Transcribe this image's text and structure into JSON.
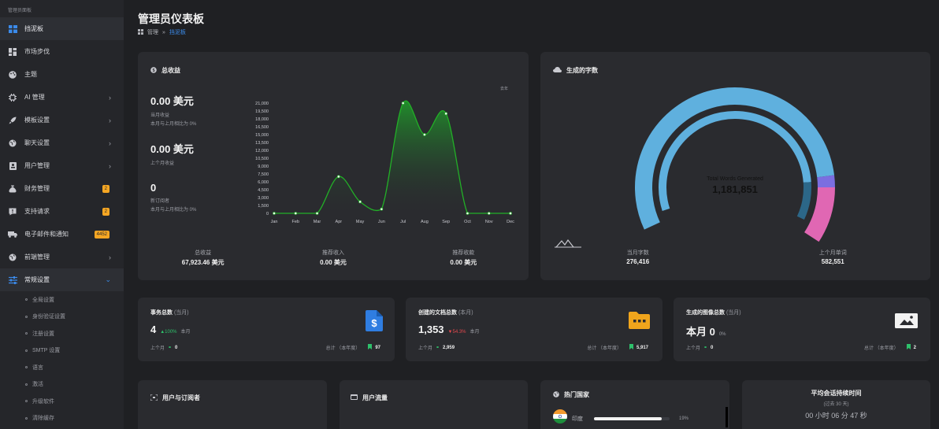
{
  "sidebar": {
    "title": "管理员面板",
    "items": [
      {
        "label": "挡泥板",
        "icon": "dashboard-icon",
        "active": true
      },
      {
        "label": "市场步伐",
        "icon": "marketplace-icon"
      },
      {
        "label": "主题",
        "icon": "palette-icon"
      },
      {
        "label": "AI 管理",
        "icon": "chip-icon",
        "chevron": "›"
      },
      {
        "label": "模板设置",
        "icon": "rocket-icon",
        "chevron": "›"
      },
      {
        "label": "聊天设置",
        "icon": "globe-icon",
        "chevron": "›"
      },
      {
        "label": "用户管理",
        "icon": "user-card-icon",
        "chevron": "›"
      },
      {
        "label": "财务管理",
        "icon": "money-bag-icon",
        "badge": "2"
      },
      {
        "label": "支持请求",
        "icon": "support-icon",
        "badge": "2"
      },
      {
        "label": "电子邮件和通知",
        "icon": "mail-truck-icon",
        "badge": "4452"
      },
      {
        "label": "前端管理",
        "icon": "globe-icon",
        "chevron": "›"
      },
      {
        "label": "常规设置",
        "icon": "sliders-icon",
        "chevron": "⌄",
        "active": true
      }
    ],
    "sub_items": [
      "全局设置",
      "身份验证设置",
      "注册设置",
      "SMTP 设置",
      "语言",
      "激活",
      "升级软件",
      "清除缓存"
    ]
  },
  "header": {
    "title": "管理员仪表板",
    "breadcrumb_root": "管理",
    "breadcrumb_sep": "»",
    "breadcrumb_current": "挡泥板"
  },
  "revenue": {
    "title": "总收益",
    "current_amount": "0.00 美元",
    "current_label": "当月收益",
    "current_compare": "本月与上月相比为 0%",
    "prev_amount": "0.00 美元",
    "prev_label": "上个月收益",
    "orders_count": "0",
    "orders_label": "新订阅者",
    "orders_compare": "本月与上月相比为 0%",
    "legend_tag": "去年",
    "footer": [
      {
        "label": "总收益",
        "value": "67,923.46 美元"
      },
      {
        "label": "推荐收入",
        "value": "0.00 美元"
      },
      {
        "label": "推荐收款",
        "value": "0.00 美元"
      }
    ]
  },
  "chart_data": {
    "type": "line",
    "categories": [
      "Jan",
      "Feb",
      "Mar",
      "Apr",
      "May",
      "Jun",
      "Jul",
      "Aug",
      "Sep",
      "Oct",
      "Nov",
      "Dec"
    ],
    "values": [
      0,
      0,
      0,
      7000,
      2200,
      800,
      21000,
      15000,
      19000,
      0,
      0,
      0
    ],
    "ylim": [
      0,
      21000
    ],
    "yticks": [
      "0",
      "1,500",
      "3,000",
      "4,500",
      "6,000",
      "7,500",
      "9,000",
      "10,500",
      "12,000",
      "13,500",
      "15,000",
      "16,500",
      "18,000",
      "19,500",
      "21,000"
    ],
    "color": "#22b027"
  },
  "words": {
    "title": "生成的字数",
    "center_label": "Total Words Generated",
    "center_value": "1,181,851",
    "stats": [
      {
        "label": "当月字数",
        "value": "276,416"
      },
      {
        "label": "上个月单词",
        "value": "582,551"
      }
    ]
  },
  "tasks": {
    "title": "事务总数",
    "title_suffix": "(当月)",
    "value": "4",
    "change": "▲100%",
    "change_suffix": "本月",
    "prev_label": "上个月",
    "prev_value": "0",
    "total_label": "总计 （本年度）",
    "total_value": "97"
  },
  "docs": {
    "title": "创建的文档总数",
    "title_suffix": "(本月)",
    "value": "1,353",
    "change": "▼54.3%",
    "change_suffix": "本月",
    "prev_label": "上个月",
    "prev_value": "2,959",
    "total_label": "总计 （本年度）",
    "total_value": "5,917"
  },
  "images": {
    "title": "生成的图像总数",
    "title_suffix": "(当月)",
    "value": "本月 0",
    "change": "0%",
    "prev_label": "上个月",
    "prev_value": "0",
    "total_label": "总计 （本年度）",
    "total_value": "2"
  },
  "bottom": {
    "users_title": "用户与订阅者",
    "traffic_title": "用户流量",
    "countries_title": "热门国家",
    "country_name": "印度",
    "country_pct": "19%",
    "country_share": 0.9,
    "session_title": "平均会话持续时间",
    "session_sub": "(过去 30 天)",
    "session_value": "00 小时 06 分 47 秒"
  }
}
